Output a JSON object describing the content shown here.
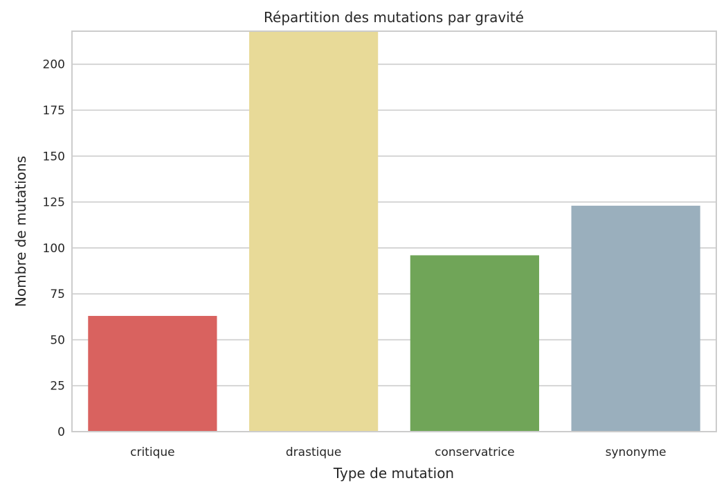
{
  "chart_data": {
    "type": "bar",
    "title": "Répartition des mutations par gravité",
    "xlabel": "Type de mutation",
    "ylabel": "Nombre de mutations",
    "categories": [
      "critique",
      "drastique",
      "conservatrice",
      "synonyme"
    ],
    "values": [
      63,
      218,
      96,
      123
    ],
    "colors": [
      "#d9625f",
      "#e8da98",
      "#70a558",
      "#9aafbd"
    ],
    "ylim": [
      0,
      218
    ],
    "yticks": [
      0,
      25,
      50,
      75,
      100,
      125,
      150,
      175,
      200
    ],
    "grid": "horizontal",
    "legend": "none"
  }
}
